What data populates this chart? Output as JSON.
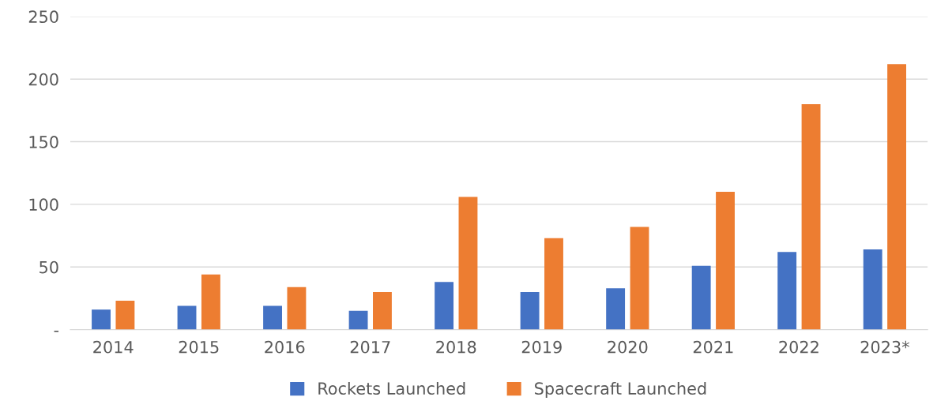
{
  "chart_data": {
    "type": "bar",
    "categories": [
      "2014",
      "2015",
      "2016",
      "2017",
      "2018",
      "2019",
      "2020",
      "2021",
      "2022",
      "2023*"
    ],
    "series": [
      {
        "name": "Rockets Launched",
        "color": "#4472c4",
        "values": [
          16,
          19,
          19,
          15,
          38,
          30,
          33,
          51,
          62,
          64
        ]
      },
      {
        "name": "Spacecraft Launched",
        "color": "#ed7d31",
        "values": [
          23,
          44,
          34,
          30,
          106,
          73,
          82,
          110,
          180,
          212
        ]
      }
    ],
    "ylim": [
      0,
      250
    ],
    "yticks": [
      {
        "value": 0,
        "label": "-"
      },
      50,
      100,
      150,
      200,
      250
    ],
    "grid": "y",
    "legend": "bottom"
  }
}
